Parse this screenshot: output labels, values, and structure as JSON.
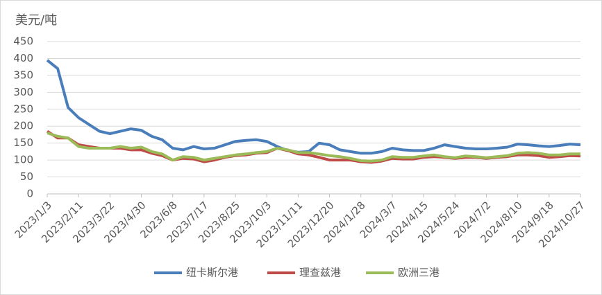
{
  "chart_data": {
    "type": "line",
    "y_label": "美元/吨",
    "categories": [
      "2023/1/3",
      null,
      null,
      "2023/2/11",
      null,
      null,
      "2023/3/22",
      null,
      null,
      "2023/4/30",
      null,
      null,
      "2023/6/8",
      null,
      null,
      "2023/7/17",
      null,
      null,
      "2023/8/25",
      null,
      null,
      "2023/10/3",
      null,
      null,
      "2023/11/11",
      null,
      null,
      "2023/12/20",
      null,
      null,
      "2024/1/28",
      null,
      null,
      "2024/3/7",
      null,
      null,
      "2024/4/15",
      null,
      null,
      "2024/5/24",
      null,
      null,
      "2024/7/2",
      null,
      null,
      "2024/8/10",
      null,
      null,
      "2024/9/18",
      null,
      null,
      "2024/10/27"
    ],
    "series": [
      {
        "name": "纽卡斯尔港",
        "color": "#4a7ebb",
        "values": [
          395,
          370,
          255,
          225,
          205,
          185,
          178,
          185,
          192,
          188,
          170,
          160,
          135,
          130,
          140,
          133,
          135,
          145,
          155,
          158,
          160,
          155,
          140,
          128,
          123,
          125,
          150,
          145,
          130,
          125,
          120,
          120,
          125,
          135,
          130,
          128,
          128,
          135,
          145,
          140,
          135,
          133,
          133,
          135,
          138,
          147,
          145,
          142,
          140,
          143,
          147,
          145
        ]
      },
      {
        "name": "理查兹港",
        "color": "#be4b48",
        "values": [
          185,
          165,
          165,
          145,
          140,
          135,
          135,
          135,
          130,
          130,
          120,
          113,
          100,
          105,
          103,
          95,
          100,
          108,
          113,
          115,
          120,
          122,
          135,
          128,
          118,
          115,
          108,
          100,
          100,
          100,
          95,
          93,
          97,
          105,
          103,
          103,
          108,
          110,
          108,
          105,
          108,
          108,
          105,
          108,
          110,
          115,
          115,
          113,
          108,
          110,
          113,
          112
        ]
      },
      {
        "name": "欧洲三港",
        "color": "#9bbb59",
        "values": [
          180,
          170,
          165,
          140,
          135,
          135,
          135,
          140,
          135,
          138,
          125,
          118,
          100,
          110,
          108,
          100,
          105,
          110,
          115,
          118,
          122,
          125,
          135,
          130,
          122,
          122,
          118,
          113,
          110,
          105,
          98,
          97,
          100,
          110,
          108,
          108,
          112,
          115,
          110,
          107,
          112,
          110,
          107,
          110,
          113,
          120,
          122,
          120,
          115,
          115,
          118,
          118
        ]
      }
    ],
    "ylim": [
      0,
      450
    ],
    "yticks": [
      0,
      50,
      100,
      150,
      200,
      250,
      300,
      350,
      400,
      450
    ],
    "grid": true,
    "legend": "bottom"
  }
}
